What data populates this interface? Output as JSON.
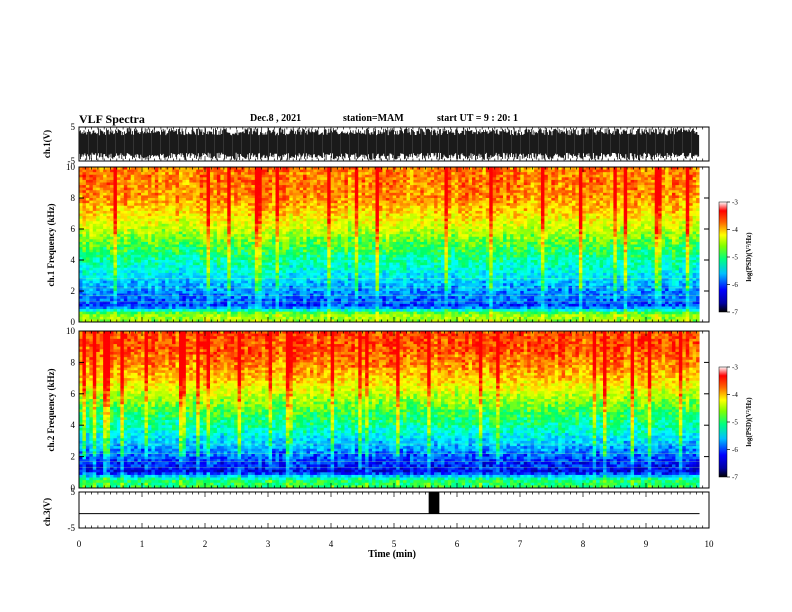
{
  "header": {
    "title": "VLF Spectra",
    "date": "Dec.8 , 2021",
    "station": "station=MAM",
    "start": "start UT = 9 : 20: 1"
  },
  "colors": {
    "colormap": [
      "#000080",
      "#0000ff",
      "#00a0ff",
      "#00ffff",
      "#00ff60",
      "#a0ff00",
      "#ffff00",
      "#ff8000",
      "#ff0000",
      "#ffffff"
    ],
    "trace": "#000000"
  },
  "chart_data": [
    {
      "type": "line",
      "panel": "ch1-waveform",
      "ylabel": "ch.1(V)",
      "ylim": [
        -5,
        5
      ],
      "yticks": [
        "5",
        "-5"
      ],
      "xlim": [
        0,
        10
      ],
      "note_values": "dense broadband VLF waveform saturating near ±5 V across the full record"
    },
    {
      "type": "heatmap",
      "panel": "ch1-spectrogram",
      "ylabel": "ch.1 Frequency (kHz)",
      "ylim": [
        0,
        10
      ],
      "yticks": [
        "0",
        "2",
        "4",
        "6",
        "8",
        "10"
      ],
      "xlim": [
        0,
        9.85
      ],
      "colorbar": {
        "label": "log(PSD)(V²/Hz)",
        "range": [
          -7,
          -3
        ],
        "ticks": [
          "-3",
          "-4",
          "-5",
          "-6",
          "-7"
        ]
      },
      "approx_log_psd_by_frequency": [
        {
          "freq_khz": 0.5,
          "value": -4.5
        },
        {
          "freq_khz": 1.0,
          "value": -6.3
        },
        {
          "freq_khz": 2.0,
          "value": -6.0
        },
        {
          "freq_khz": 3.0,
          "value": -5.6
        },
        {
          "freq_khz": 4.0,
          "value": -5.2
        },
        {
          "freq_khz": 5.0,
          "value": -4.8
        },
        {
          "freq_khz": 6.0,
          "value": -4.3
        },
        {
          "freq_khz": 7.0,
          "value": -3.9
        },
        {
          "freq_khz": 8.0,
          "value": -3.6
        },
        {
          "freq_khz": 9.0,
          "value": -3.5
        },
        {
          "freq_khz": 10.0,
          "value": -3.5
        }
      ]
    },
    {
      "type": "heatmap",
      "panel": "ch2-spectrogram",
      "ylabel": "ch.2 Frequency (kHz)",
      "ylim": [
        0,
        10
      ],
      "yticks": [
        "0",
        "2",
        "4",
        "6",
        "8",
        "10"
      ],
      "xlim": [
        0,
        9.85
      ],
      "colorbar": {
        "label": "log(PSD)(V²/Hz)",
        "range": [
          -7,
          -3
        ],
        "ticks": [
          "-3",
          "-4",
          "-5",
          "-6",
          "-7"
        ]
      },
      "approx_log_psd_by_frequency": [
        {
          "freq_khz": 0.5,
          "value": -5.0
        },
        {
          "freq_khz": 1.0,
          "value": -6.6
        },
        {
          "freq_khz": 2.0,
          "value": -6.2
        },
        {
          "freq_khz": 3.0,
          "value": -5.7
        },
        {
          "freq_khz": 4.0,
          "value": -5.2
        },
        {
          "freq_khz": 5.0,
          "value": -4.8
        },
        {
          "freq_khz": 6.0,
          "value": -4.3
        },
        {
          "freq_khz": 7.0,
          "value": -3.8
        },
        {
          "freq_khz": 8.0,
          "value": -3.5
        },
        {
          "freq_khz": 9.0,
          "value": -3.3
        },
        {
          "freq_khz": 10.0,
          "value": -3.3
        }
      ]
    },
    {
      "type": "line",
      "panel": "ch3-waveform",
      "ylabel": "ch.3(V)",
      "ylim": [
        -5,
        5
      ],
      "yticks": [
        "5",
        "-5"
      ],
      "xlim": [
        0,
        10
      ],
      "baseline_v": -1,
      "pulse": {
        "x_start": 5.55,
        "x_end": 5.72,
        "y_high": 5
      }
    }
  ],
  "x_axis": {
    "label": "Time (min)",
    "ticks": [
      "0",
      "1",
      "2",
      "3",
      "4",
      "5",
      "6",
      "7",
      "8",
      "9",
      "10"
    ]
  }
}
